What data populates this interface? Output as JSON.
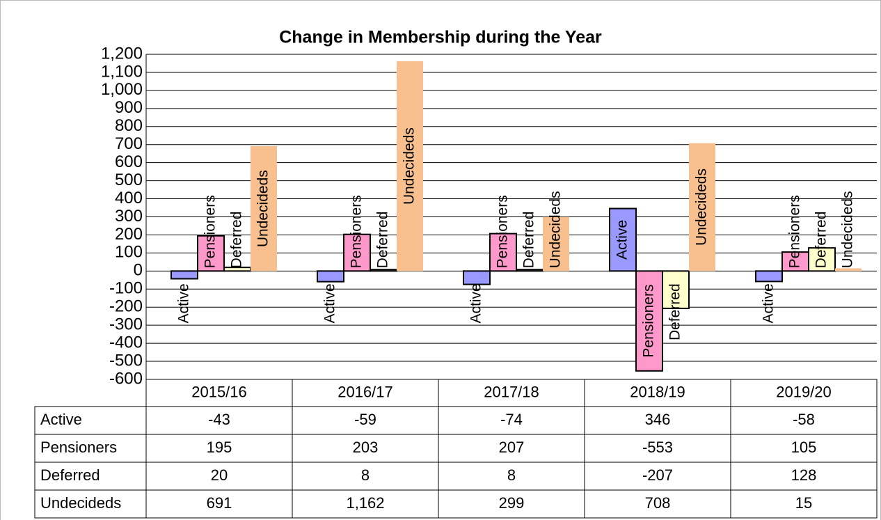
{
  "chart_data": {
    "type": "bar",
    "title": "Change in Membership during the Year",
    "categories": [
      "2015/16",
      "2016/17",
      "2017/18",
      "2018/19",
      "2019/20"
    ],
    "series": [
      {
        "name": "Active",
        "color": "#9999ff",
        "values": [
          -43,
          -59,
          -74,
          346,
          -58
        ]
      },
      {
        "name": "Pensioners",
        "color": "#ff99cc",
        "values": [
          195,
          203,
          207,
          -553,
          105
        ]
      },
      {
        "name": "Deferred",
        "color": "#ffffcc",
        "values": [
          20,
          8,
          8,
          -207,
          128
        ]
      },
      {
        "name": "Undecideds",
        "color": "#f9c08f",
        "values": [
          691,
          1162,
          299,
          708,
          15
        ],
        "value_labels": [
          "691",
          "1,162",
          "299",
          "708",
          "15"
        ]
      }
    ],
    "ylim": [
      -600,
      1200
    ],
    "yticks": [
      -600,
      -500,
      -400,
      -300,
      -200,
      -100,
      0,
      100,
      200,
      300,
      400,
      500,
      600,
      700,
      800,
      900,
      {
        "value": 1000,
        "label": "1,000"
      },
      {
        "value": 1100,
        "label": "1,100"
      },
      {
        "value": 1200,
        "label": "1,200"
      }
    ],
    "grid": true
  }
}
